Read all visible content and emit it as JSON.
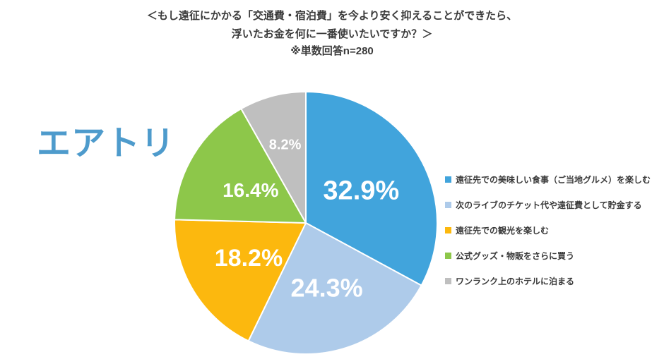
{
  "header": {
    "line1": "＜もし遠征にかかる「交通費・宿泊費」を今より安く抑えることができたら、",
    "line2": "浮いたお金を何に一番使いたいですか？＞",
    "note": "※単数回答n=280"
  },
  "brand": {
    "logo_text": "エアトリ",
    "logo_color": "#4E9BCC"
  },
  "chart_data": {
    "type": "pie",
    "title": "もし遠征にかかる「交通費・宿泊費」を今より安く抑えることができたら、浮いたお金を何に一番使いたいですか？",
    "sample_note": "※単数回答n=280",
    "start_angle": "12-oclock",
    "direction": "clockwise",
    "legend_position": "right",
    "slice_border_color": "#ffffff",
    "label_color": "#ffffff",
    "series": [
      {
        "name": "遠征先での美味しい食事（ご当地グルメ）を楽しむ",
        "value": 32.9,
        "display": "32.9%",
        "color": "#41A4DC",
        "label_size": 38,
        "label_r": 0.49
      },
      {
        "name": "次のライブのチケット代や遠征費として貯金する",
        "value": 24.3,
        "display": "24.3%",
        "color": "#AECBEA",
        "label_size": 36,
        "label_r": 0.52
      },
      {
        "name": "遠征先での観光を楽しむ",
        "value": 18.2,
        "display": "18.2%",
        "color": "#FCB80E",
        "label_size": 34,
        "label_r": 0.51
      },
      {
        "name": "公式グッズ・物販をさらに買う",
        "value": 16.4,
        "display": "16.4%",
        "color": "#8DC74A",
        "label_size": 28,
        "label_r": 0.49
      },
      {
        "name": "ワンランク上のホテルに泊まる",
        "value": 8.2,
        "display": "8.2%",
        "color": "#BFBFBF",
        "label_size": 20,
        "label_r": 0.62
      }
    ]
  }
}
